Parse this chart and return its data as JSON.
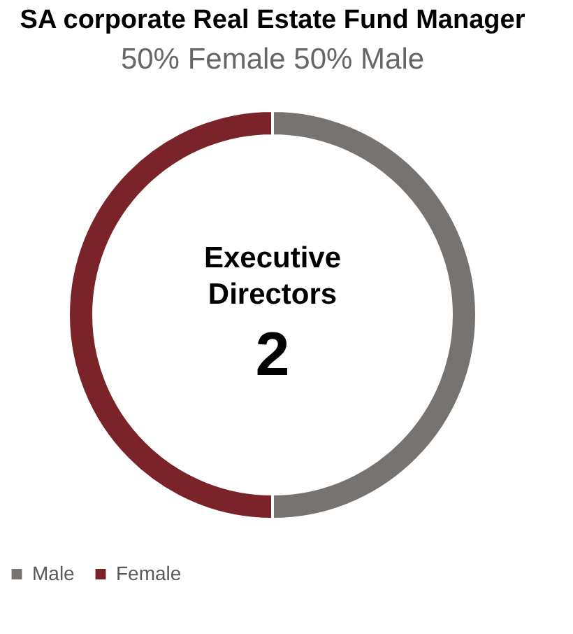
{
  "chart_data": {
    "type": "donut",
    "title": "SA corporate Real Estate Fund Manager",
    "subtitle": "50% Female 50% Male",
    "categories": [
      "Male",
      "Female"
    ],
    "values": [
      50,
      50
    ],
    "colors": [
      "#777370",
      "#7a2328"
    ],
    "annotations": [
      "Executive Directors",
      "2"
    ],
    "legend": "bottom"
  }
}
